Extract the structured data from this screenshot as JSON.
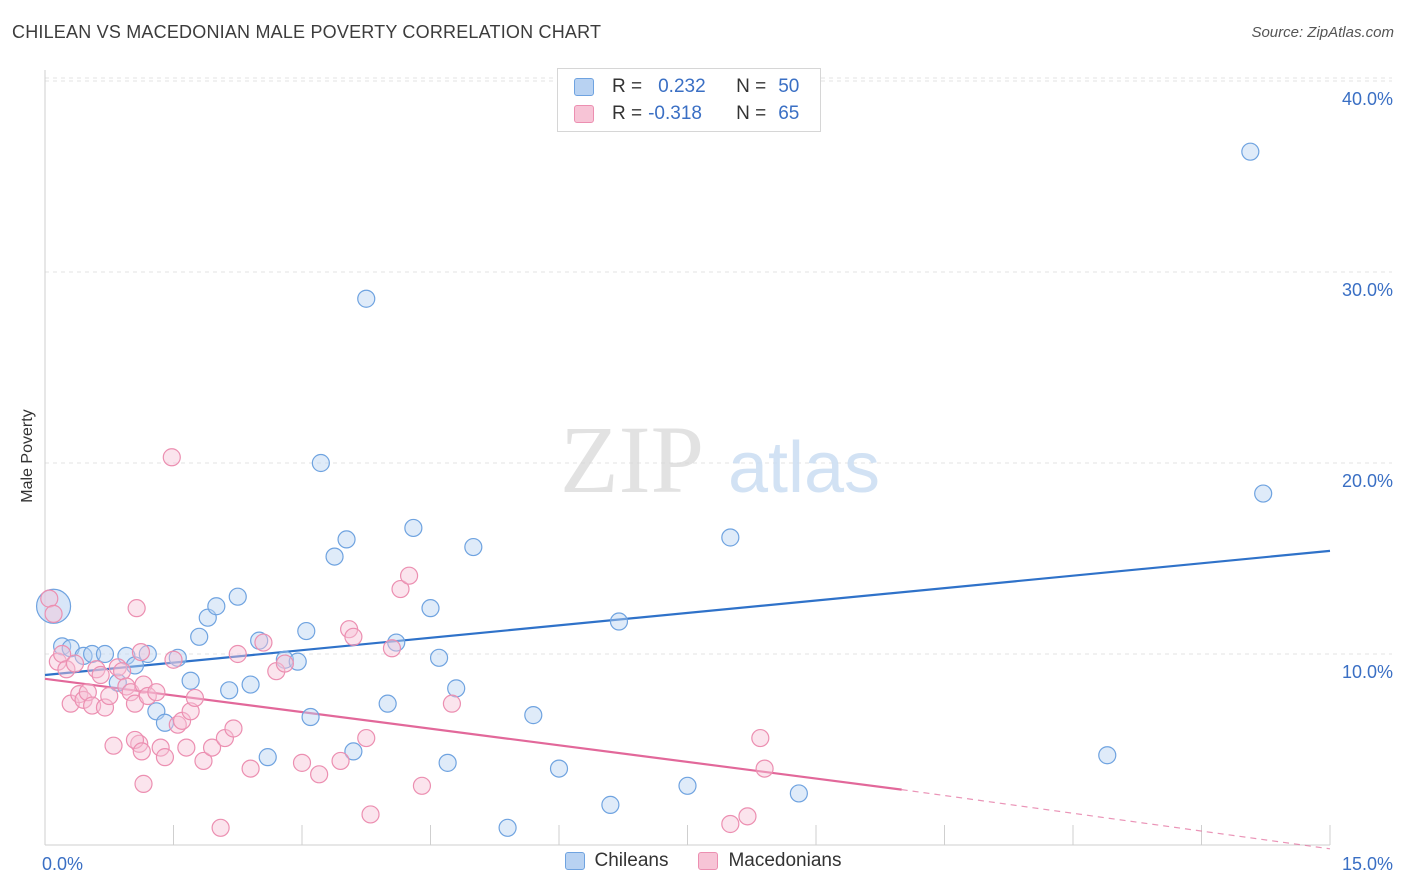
{
  "header": {
    "title": "CHILEAN VS MACEDONIAN MALE POVERTY CORRELATION CHART",
    "source": "Source: ZipAtlas.com"
  },
  "watermark": {
    "zip": "ZIP",
    "atlas": "atlas"
  },
  "stats": [
    {
      "r_label": "R =",
      "r_value": "0.232",
      "n_label": "N =",
      "n_value": "50",
      "color": "#6fa3e0",
      "fill": "#b8d2f2"
    },
    {
      "r_label": "R =",
      "r_value": "-0.318",
      "n_label": "N =",
      "n_value": "65",
      "color": "#ec8fb1",
      "fill": "#f7c4d6"
    }
  ],
  "legend": [
    {
      "label": "Chileans",
      "color": "#6fa3e0",
      "fill": "#b8d2f2"
    },
    {
      "label": "Macedonians",
      "color": "#ec8fb1",
      "fill": "#f7c4d6"
    }
  ],
  "chart_data": {
    "type": "scatter",
    "title": "CHILEAN VS MACEDONIAN MALE POVERTY CORRELATION CHART",
    "xlabel": "",
    "ylabel": "Male Poverty",
    "xlim": [
      0,
      15
    ],
    "ylim": [
      0,
      42
    ],
    "x_tick_labels": [
      {
        "value": 0,
        "label": "0.0%"
      },
      {
        "value": 15,
        "label": "15.0%"
      }
    ],
    "y_tick_labels": [
      {
        "value": 10,
        "label": "10.0%"
      },
      {
        "value": 20,
        "label": "20.0%"
      },
      {
        "value": 30,
        "label": "30.0%"
      },
      {
        "value": 40,
        "label": "40.0%"
      }
    ],
    "grid": true,
    "legend_position": "bottom-center",
    "series": [
      {
        "name": "Chileans",
        "color": "#6fa3e0",
        "trend": {
          "x": [
            0,
            15
          ],
          "y": [
            8.9,
            15.4
          ],
          "style": "solid"
        },
        "points": [
          [
            0.1,
            12.5
          ],
          [
            0.2,
            10.4
          ],
          [
            0.3,
            10.3
          ],
          [
            0.45,
            9.9
          ],
          [
            0.55,
            10.0
          ],
          [
            0.7,
            10.0
          ],
          [
            0.85,
            8.5
          ],
          [
            0.95,
            9.9
          ],
          [
            1.05,
            9.4
          ],
          [
            1.2,
            10.0
          ],
          [
            1.3,
            7.0
          ],
          [
            1.4,
            6.4
          ],
          [
            1.55,
            9.8
          ],
          [
            1.7,
            8.6
          ],
          [
            1.8,
            10.9
          ],
          [
            1.9,
            11.9
          ],
          [
            2.0,
            12.5
          ],
          [
            2.15,
            8.1
          ],
          [
            2.25,
            13.0
          ],
          [
            2.4,
            8.4
          ],
          [
            2.5,
            10.7
          ],
          [
            2.6,
            4.6
          ],
          [
            2.8,
            9.7
          ],
          [
            2.95,
            9.6
          ],
          [
            3.05,
            11.2
          ],
          [
            3.1,
            6.7
          ],
          [
            3.22,
            20.0
          ],
          [
            3.38,
            15.1
          ],
          [
            3.52,
            16.0
          ],
          [
            3.6,
            4.9
          ],
          [
            3.75,
            28.6
          ],
          [
            4.0,
            7.4
          ],
          [
            4.1,
            10.6
          ],
          [
            4.3,
            16.6
          ],
          [
            4.5,
            12.4
          ],
          [
            4.6,
            9.8
          ],
          [
            4.7,
            4.3
          ],
          [
            4.8,
            8.2
          ],
          [
            5.0,
            15.6
          ],
          [
            5.4,
            0.9
          ],
          [
            5.7,
            6.8
          ],
          [
            6.0,
            4.0
          ],
          [
            6.6,
            2.1
          ],
          [
            6.7,
            11.7
          ],
          [
            7.5,
            3.1
          ],
          [
            8.0,
            16.1
          ],
          [
            8.8,
            2.7
          ],
          [
            12.4,
            4.7
          ],
          [
            14.07,
            36.3
          ],
          [
            14.22,
            18.4
          ]
        ]
      },
      {
        "name": "Macedonians",
        "color": "#ec8fb1",
        "trend": {
          "x": [
            0,
            10.0
          ],
          "y": [
            8.7,
            2.9
          ],
          "style": "solid",
          "dashed_to": [
            15,
            -0.2
          ]
        },
        "points": [
          [
            0.05,
            12.9
          ],
          [
            0.1,
            12.1
          ],
          [
            0.15,
            9.6
          ],
          [
            0.2,
            10.0
          ],
          [
            0.25,
            9.2
          ],
          [
            0.3,
            7.4
          ],
          [
            0.35,
            9.5
          ],
          [
            0.4,
            7.9
          ],
          [
            0.45,
            7.6
          ],
          [
            0.5,
            8.0
          ],
          [
            0.55,
            7.3
          ],
          [
            0.6,
            9.2
          ],
          [
            0.65,
            8.9
          ],
          [
            0.7,
            7.2
          ],
          [
            0.75,
            7.8
          ],
          [
            0.8,
            5.2
          ],
          [
            0.85,
            9.3
          ],
          [
            0.9,
            9.1
          ],
          [
            0.95,
            8.3
          ],
          [
            1.0,
            8.0
          ],
          [
            1.05,
            7.4
          ],
          [
            1.1,
            5.3
          ],
          [
            1.15,
            8.4
          ],
          [
            1.2,
            7.8
          ],
          [
            1.05,
            5.5
          ],
          [
            1.07,
            12.4
          ],
          [
            1.12,
            10.1
          ],
          [
            1.13,
            4.9
          ],
          [
            1.15,
            3.2
          ],
          [
            1.3,
            8.0
          ],
          [
            1.35,
            5.1
          ],
          [
            1.4,
            4.6
          ],
          [
            1.48,
            20.3
          ],
          [
            1.5,
            9.7
          ],
          [
            1.55,
            6.3
          ],
          [
            1.6,
            6.5
          ],
          [
            1.65,
            5.1
          ],
          [
            1.7,
            7.0
          ],
          [
            1.75,
            7.7
          ],
          [
            1.85,
            4.4
          ],
          [
            1.95,
            5.1
          ],
          [
            2.05,
            0.9
          ],
          [
            2.1,
            5.6
          ],
          [
            2.2,
            6.1
          ],
          [
            2.25,
            10.0
          ],
          [
            2.4,
            4.0
          ],
          [
            2.55,
            10.6
          ],
          [
            2.7,
            9.1
          ],
          [
            2.8,
            9.5
          ],
          [
            3.0,
            4.3
          ],
          [
            3.2,
            3.7
          ],
          [
            3.45,
            4.4
          ],
          [
            3.55,
            11.3
          ],
          [
            3.6,
            10.9
          ],
          [
            3.75,
            5.6
          ],
          [
            3.8,
            1.6
          ],
          [
            4.05,
            10.3
          ],
          [
            4.15,
            13.4
          ],
          [
            4.25,
            14.1
          ],
          [
            4.4,
            3.1
          ],
          [
            4.75,
            7.4
          ],
          [
            8.0,
            1.1
          ],
          [
            8.2,
            1.5
          ],
          [
            8.35,
            5.6
          ],
          [
            8.4,
            4.0
          ]
        ]
      }
    ]
  }
}
